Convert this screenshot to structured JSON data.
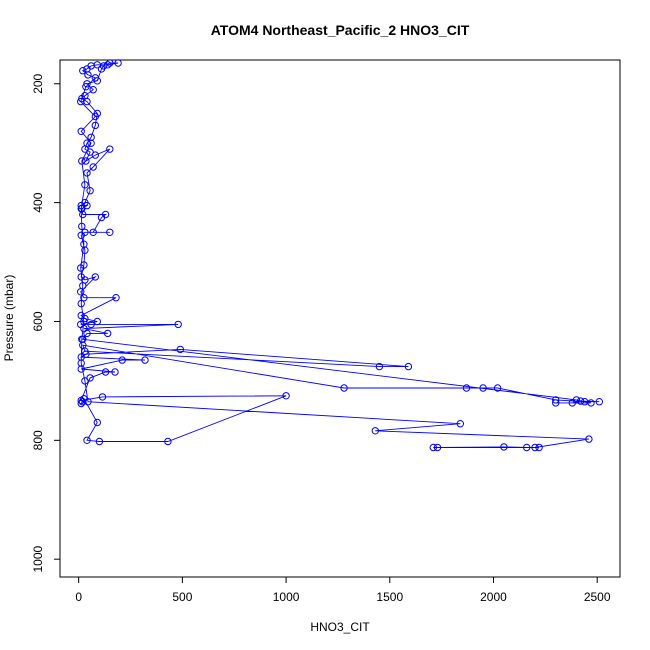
{
  "chart_data": {
    "type": "line",
    "title": "ATOM4 Northeast_Pacific_2 HNO3_CIT",
    "xlabel": "HNO3_CIT",
    "ylabel": "Pressure (mbar)",
    "xlim": [
      -90,
      2610
    ],
    "ylim": [
      1030,
      160
    ],
    "y_reversed": true,
    "xticks": [
      0,
      500,
      1000,
      1500,
      2000,
      2500
    ],
    "yticks": [
      200,
      400,
      600,
      800,
      1000
    ],
    "grid": false,
    "marker": "open-circle",
    "colors": {
      "series": "#0000ff",
      "axis": "#000000",
      "background": "#ffffff"
    },
    "series": [
      {
        "values": [
          [
            12,
            738
          ],
          [
            18,
            735
          ],
          [
            25,
            730
          ],
          [
            90,
            770
          ],
          [
            40,
            800
          ],
          [
            100,
            802
          ],
          [
            430,
            802
          ],
          [
            1000,
            725
          ],
          [
            115,
            727
          ],
          [
            12,
            733
          ],
          [
            55,
            695
          ],
          [
            130,
            685
          ],
          [
            175,
            685
          ],
          [
            12,
            680
          ],
          [
            210,
            665
          ],
          [
            320,
            665
          ],
          [
            12,
            660
          ],
          [
            35,
            655
          ],
          [
            490,
            647
          ],
          [
            1590,
            676
          ],
          [
            1450,
            676
          ],
          [
            30,
            650
          ],
          [
            20,
            640
          ],
          [
            1280,
            712
          ],
          [
            1870,
            712
          ],
          [
            1950,
            712
          ],
          [
            2020,
            712
          ],
          [
            2300,
            732
          ],
          [
            2440,
            735
          ],
          [
            2510,
            735
          ],
          [
            2420,
            734
          ],
          [
            2380,
            737
          ],
          [
            2300,
            737
          ],
          [
            2470,
            737
          ],
          [
            2400,
            732
          ],
          [
            20,
            630
          ],
          [
            40,
            620
          ],
          [
            140,
            620
          ],
          [
            25,
            612
          ],
          [
            480,
            605
          ],
          [
            60,
            605
          ],
          [
            10,
            605
          ],
          [
            90,
            600
          ],
          [
            30,
            595
          ],
          [
            12,
            590
          ],
          [
            180,
            560
          ],
          [
            25,
            560
          ],
          [
            10,
            550
          ],
          [
            80,
            525
          ],
          [
            30,
            530
          ],
          [
            12,
            525
          ],
          [
            25,
            505
          ],
          [
            30,
            480
          ],
          [
            12,
            455
          ],
          [
            30,
            450
          ],
          [
            150,
            450
          ],
          [
            70,
            450
          ],
          [
            110,
            425
          ],
          [
            130,
            420
          ],
          [
            20,
            420
          ],
          [
            15,
            410
          ],
          [
            40,
            405
          ],
          [
            12,
            405
          ],
          [
            30,
            400
          ],
          [
            55,
            380
          ],
          [
            40,
            350
          ],
          [
            70,
            340
          ],
          [
            150,
            310
          ],
          [
            80,
            320
          ],
          [
            35,
            330
          ],
          [
            55,
            315
          ],
          [
            30,
            310
          ],
          [
            40,
            300
          ],
          [
            60,
            290
          ],
          [
            80,
            270
          ],
          [
            90,
            250
          ],
          [
            40,
            230
          ],
          [
            15,
            225
          ],
          [
            30,
            220
          ],
          [
            70,
            210
          ],
          [
            40,
            200
          ],
          [
            90,
            195
          ],
          [
            110,
            175
          ],
          [
            120,
            170
          ],
          [
            150,
            165
          ],
          [
            190,
            165
          ],
          [
            140,
            168
          ],
          [
            90,
            168
          ],
          [
            60,
            170
          ],
          [
            40,
            175
          ],
          [
            20,
            178
          ],
          [
            45,
            185
          ],
          [
            80,
            190
          ],
          [
            35,
            205
          ],
          [
            10,
            230
          ],
          [
            80,
            255
          ],
          [
            12,
            280
          ],
          [
            60,
            300
          ],
          [
            15,
            330
          ],
          [
            30,
            370
          ],
          [
            12,
            410
          ],
          [
            15,
            440
          ],
          [
            25,
            470
          ],
          [
            10,
            510
          ],
          [
            20,
            540
          ],
          [
            12,
            570
          ],
          [
            25,
            600
          ],
          [
            15,
            630
          ],
          [
            12,
            670
          ],
          [
            30,
            700
          ],
          [
            45,
            735
          ],
          [
            1840,
            772
          ],
          [
            1430,
            784
          ],
          [
            2460,
            798
          ],
          [
            2200,
            812
          ],
          [
            2160,
            812
          ],
          [
            2050,
            811
          ],
          [
            1730,
            812
          ],
          [
            1710,
            812
          ],
          [
            2220,
            812
          ]
        ]
      }
    ]
  }
}
